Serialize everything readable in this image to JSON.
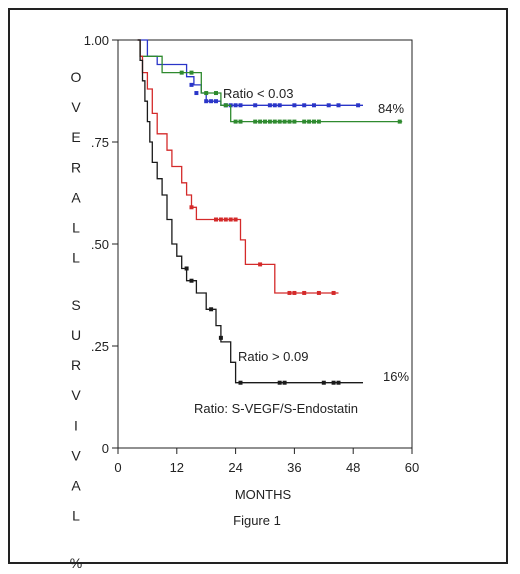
{
  "chart_data": {
    "type": "line",
    "title": "",
    "caption": "Figure 1",
    "xlabel": "MONTHS",
    "ylabel": "O V E R A L L   S U R V I V A L   %",
    "xlim": [
      0,
      60
    ],
    "ylim": [
      0,
      1.0
    ],
    "x_ticks": [
      0,
      12,
      24,
      36,
      48,
      60
    ],
    "x_tick_labels": [
      "0",
      "12",
      "24",
      "36",
      "48",
      "60"
    ],
    "y_ticks": [
      0,
      0.25,
      0.5,
      0.75,
      1.0
    ],
    "y_tick_labels": [
      "0",
      ".25",
      ".50",
      ".75",
      "1.00"
    ],
    "grid": false,
    "annotations": [
      "Ratio < 0.03",
      "84%",
      "Ratio > 0.09",
      "16%",
      "Ratio: S-VEGF/S-Endostatin"
    ],
    "series": [
      {
        "color": "#2a35c8",
        "steps": [
          [
            4,
            1.0
          ],
          [
            6,
            1.0
          ],
          [
            6,
            0.96
          ],
          [
            8,
            0.96
          ],
          [
            8,
            0.94
          ],
          [
            14,
            0.94
          ],
          [
            14,
            0.91
          ],
          [
            15.5,
            0.91
          ],
          [
            15.5,
            0.89
          ],
          [
            17,
            0.89
          ],
          [
            17,
            0.87
          ],
          [
            18,
            0.87
          ],
          [
            18,
            0.85
          ],
          [
            21,
            0.85
          ],
          [
            21,
            0.84
          ],
          [
            50,
            0.84
          ]
        ],
        "censored": [
          [
            15,
            0.89
          ],
          [
            16,
            0.87
          ],
          [
            18,
            0.85
          ],
          [
            19,
            0.85
          ],
          [
            20,
            0.85
          ],
          [
            22,
            0.84
          ],
          [
            23,
            0.84
          ],
          [
            24,
            0.84
          ],
          [
            25,
            0.84
          ],
          [
            28,
            0.84
          ],
          [
            31,
            0.84
          ],
          [
            32,
            0.84
          ],
          [
            33,
            0.84
          ],
          [
            36,
            0.84
          ],
          [
            38,
            0.84
          ],
          [
            40,
            0.84
          ],
          [
            43,
            0.84
          ],
          [
            45,
            0.84
          ],
          [
            49,
            0.84
          ]
        ]
      },
      {
        "color": "#2f8a2f",
        "steps": [
          [
            4,
            1.0
          ],
          [
            4.5,
            1.0
          ],
          [
            4.5,
            0.96
          ],
          [
            9,
            0.96
          ],
          [
            9,
            0.92
          ],
          [
            17,
            0.92
          ],
          [
            17,
            0.87
          ],
          [
            21,
            0.87
          ],
          [
            21,
            0.84
          ],
          [
            23,
            0.84
          ],
          [
            23,
            0.8
          ],
          [
            58,
            0.8
          ]
        ],
        "censored": [
          [
            13,
            0.92
          ],
          [
            15,
            0.92
          ],
          [
            18,
            0.87
          ],
          [
            20,
            0.87
          ],
          [
            22,
            0.84
          ],
          [
            24,
            0.8
          ],
          [
            25,
            0.8
          ],
          [
            28,
            0.8
          ],
          [
            29,
            0.8
          ],
          [
            30,
            0.8
          ],
          [
            31,
            0.8
          ],
          [
            32,
            0.8
          ],
          [
            33,
            0.8
          ],
          [
            34,
            0.8
          ],
          [
            35,
            0.8
          ],
          [
            36,
            0.8
          ],
          [
            38,
            0.8
          ],
          [
            39,
            0.8
          ],
          [
            40,
            0.8
          ],
          [
            41,
            0.8
          ],
          [
            57.5,
            0.8
          ]
        ]
      },
      {
        "color": "#d42a2a",
        "steps": [
          [
            4,
            1.0
          ],
          [
            4.5,
            1.0
          ],
          [
            4.5,
            0.96
          ],
          [
            5,
            0.96
          ],
          [
            5,
            0.92
          ],
          [
            6,
            0.92
          ],
          [
            6,
            0.88
          ],
          [
            7,
            0.88
          ],
          [
            7,
            0.82
          ],
          [
            8,
            0.82
          ],
          [
            8,
            0.77
          ],
          [
            10,
            0.77
          ],
          [
            10,
            0.73
          ],
          [
            11,
            0.73
          ],
          [
            11,
            0.69
          ],
          [
            13,
            0.69
          ],
          [
            13,
            0.65
          ],
          [
            14,
            0.65
          ],
          [
            14,
            0.62
          ],
          [
            15,
            0.62
          ],
          [
            15,
            0.59
          ],
          [
            16,
            0.59
          ],
          [
            16,
            0.56
          ],
          [
            25,
            0.56
          ],
          [
            25,
            0.51
          ],
          [
            26,
            0.51
          ],
          [
            26,
            0.45
          ],
          [
            32,
            0.45
          ],
          [
            32,
            0.38
          ],
          [
            45,
            0.38
          ]
        ],
        "censored": [
          [
            15,
            0.59
          ],
          [
            20,
            0.56
          ],
          [
            21,
            0.56
          ],
          [
            22,
            0.56
          ],
          [
            23,
            0.56
          ],
          [
            24,
            0.56
          ],
          [
            29,
            0.45
          ],
          [
            35,
            0.38
          ],
          [
            36,
            0.38
          ],
          [
            38,
            0.38
          ],
          [
            41,
            0.38
          ],
          [
            44,
            0.38
          ]
        ]
      },
      {
        "color": "#1a1a1a",
        "steps": [
          [
            4,
            1.0
          ],
          [
            4.5,
            1.0
          ],
          [
            4.5,
            0.95
          ],
          [
            5,
            0.95
          ],
          [
            5,
            0.9
          ],
          [
            5.5,
            0.9
          ],
          [
            5.5,
            0.85
          ],
          [
            6,
            0.85
          ],
          [
            6,
            0.8
          ],
          [
            6.5,
            0.8
          ],
          [
            6.5,
            0.75
          ],
          [
            7,
            0.75
          ],
          [
            7,
            0.7
          ],
          [
            8,
            0.7
          ],
          [
            8,
            0.66
          ],
          [
            9,
            0.66
          ],
          [
            9,
            0.62
          ],
          [
            10,
            0.62
          ],
          [
            10,
            0.56
          ],
          [
            11,
            0.56
          ],
          [
            11,
            0.5
          ],
          [
            12,
            0.5
          ],
          [
            12,
            0.47
          ],
          [
            13,
            0.47
          ],
          [
            13,
            0.44
          ],
          [
            14,
            0.44
          ],
          [
            14,
            0.41
          ],
          [
            16,
            0.41
          ],
          [
            16,
            0.38
          ],
          [
            18,
            0.38
          ],
          [
            18,
            0.34
          ],
          [
            20,
            0.34
          ],
          [
            20,
            0.3
          ],
          [
            21,
            0.3
          ],
          [
            21,
            0.26
          ],
          [
            23,
            0.26
          ],
          [
            23,
            0.21
          ],
          [
            24,
            0.21
          ],
          [
            24,
            0.16
          ],
          [
            50,
            0.16
          ]
        ],
        "censored": [
          [
            14,
            0.44
          ],
          [
            15,
            0.41
          ],
          [
            19,
            0.34
          ],
          [
            21,
            0.27
          ],
          [
            25,
            0.16
          ],
          [
            33,
            0.16
          ],
          [
            34,
            0.16
          ],
          [
            42,
            0.16
          ],
          [
            44,
            0.16
          ],
          [
            45,
            0.16
          ]
        ]
      }
    ]
  }
}
